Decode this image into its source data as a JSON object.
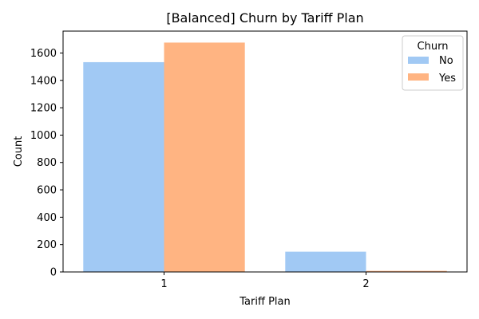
{
  "chart_data": {
    "type": "bar",
    "title": "[Balanced] Churn by Tariff Plan",
    "xlabel": "Tariff Plan",
    "ylabel": "Count",
    "categories": [
      "1",
      "2"
    ],
    "series": [
      {
        "name": "No",
        "values": [
          1533,
          148
        ],
        "color": "#a1c9f4"
      },
      {
        "name": "Yes",
        "values": [
          1676,
          8
        ],
        "color": "#ffb482"
      }
    ],
    "ylim": [
      0,
      1760
    ],
    "yticks": [
      0,
      200,
      400,
      600,
      800,
      1000,
      1200,
      1400,
      1600
    ],
    "legend": {
      "title": "Churn",
      "placement": "top-right"
    },
    "grid": false
  }
}
